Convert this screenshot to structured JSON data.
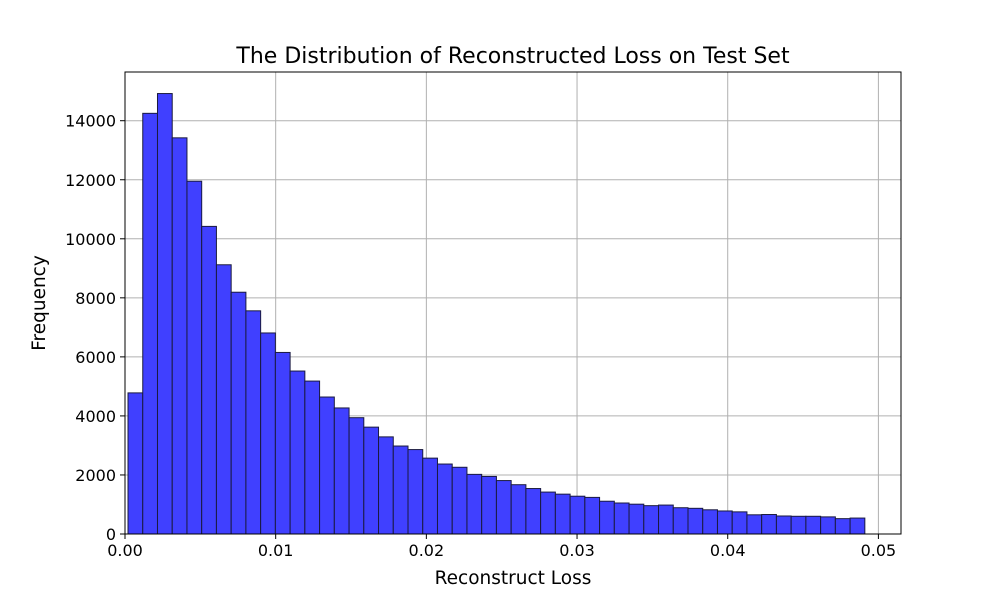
{
  "chart_data": {
    "type": "bar",
    "title": "The Distribution of Reconstructed Loss on Test Set",
    "xlabel": "Reconstruct Loss",
    "ylabel": "Frequency",
    "xlim": [
      0.0,
      0.0515
    ],
    "ylim": [
      0,
      15650
    ],
    "grid": true,
    "bar_color": "#4040ff",
    "edge_color": "#1a1a40",
    "x_ticks": [
      0.0,
      0.01,
      0.02,
      0.03,
      0.04,
      0.05
    ],
    "x_tick_labels": [
      "0.00",
      "0.01",
      "0.02",
      "0.03",
      "0.04",
      "0.05"
    ],
    "y_ticks": [
      0,
      2000,
      4000,
      6000,
      8000,
      10000,
      12000,
      14000
    ],
    "y_tick_labels": [
      "0",
      "2000",
      "4000",
      "6000",
      "8000",
      "10000",
      "12000",
      "14000"
    ],
    "bin_start": 0.0002,
    "bin_width": 0.000978,
    "values": [
      4780,
      14250,
      14920,
      13420,
      11950,
      10420,
      9120,
      8190,
      7560,
      6810,
      6150,
      5520,
      5180,
      4640,
      4270,
      3940,
      3620,
      3290,
      2980,
      2860,
      2570,
      2370,
      2260,
      2020,
      1950,
      1810,
      1670,
      1540,
      1420,
      1350,
      1280,
      1240,
      1110,
      1050,
      1010,
      960,
      980,
      890,
      870,
      820,
      780,
      750,
      650,
      660,
      610,
      600,
      600,
      580,
      520,
      540
    ]
  }
}
